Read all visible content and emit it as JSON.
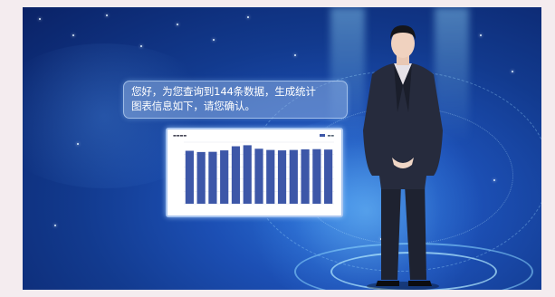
{
  "bubble": {
    "text": "您好，为您查询到144条数据，生成统计\n图表信息如下，请您确认。"
  },
  "chart_data": {
    "type": "bar",
    "title": "",
    "values": [
      258,
      252,
      253,
      260,
      280,
      285,
      268,
      262,
      260,
      262,
      265,
      266,
      264
    ],
    "ylim": [
      0,
      300
    ],
    "bar_color": "#3d57a8"
  },
  "colors": {
    "background": "#123a8e",
    "bubble": "#8caee0",
    "accent": "#8cd7ff"
  }
}
